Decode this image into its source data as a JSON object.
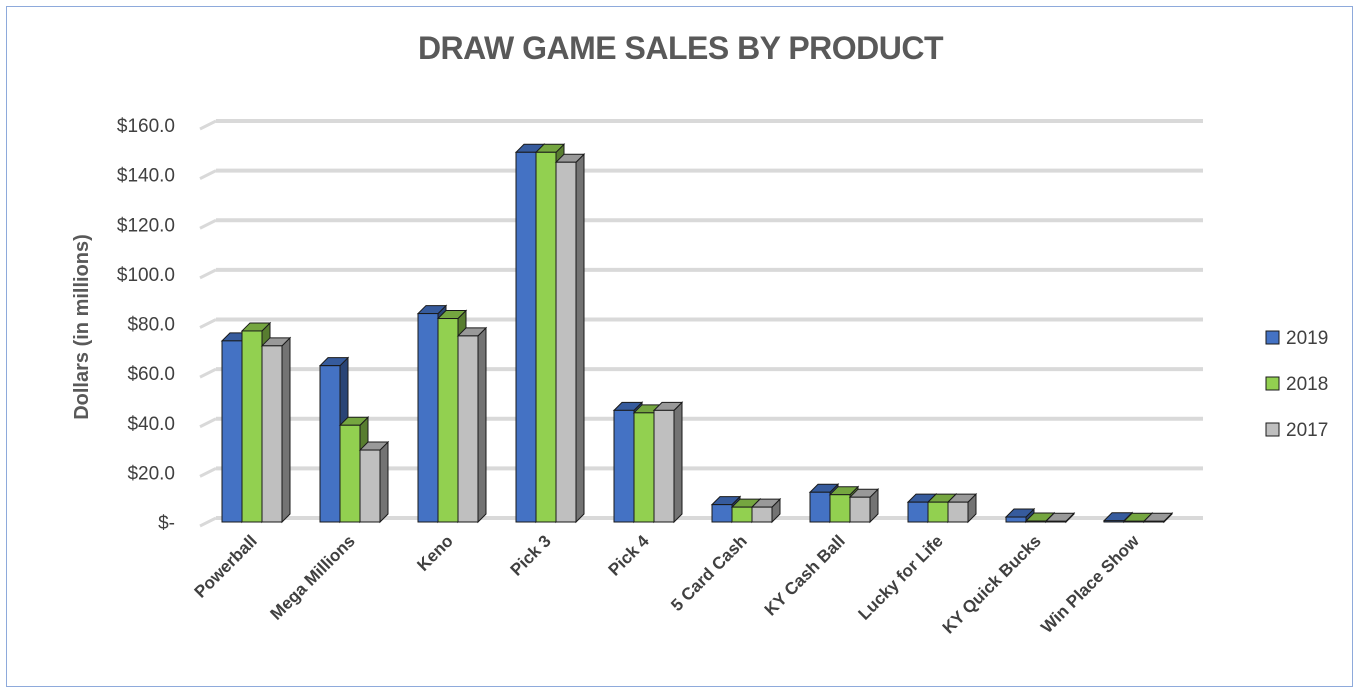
{
  "chart_data": {
    "type": "bar",
    "title": "DRAW GAME SALES BY PRODUCT",
    "ylabel": "Dollars  (in millions)",
    "xlabel": "",
    "ylim": [
      0,
      160
    ],
    "yticks": [
      "$-",
      "$20.0",
      "$40.0",
      "$60.0",
      "$80.0",
      "$100.0",
      "$120.0",
      "$140.0",
      "$160.0"
    ],
    "categories": [
      "Powerball",
      "Mega Millions",
      "Keno",
      "Pick 3",
      "Pick 4",
      "5 Card Cash",
      "KY Cash Ball",
      "Lucky for Life",
      "KY Quick Bucks",
      "Win Place Show"
    ],
    "series": [
      {
        "name": "2019",
        "values": [
          73,
          63,
          84,
          149,
          45,
          7,
          12,
          8,
          2,
          0.5
        ]
      },
      {
        "name": "2018",
        "values": [
          77,
          39,
          82,
          149,
          44,
          6,
          11,
          8,
          0.4,
          0.3
        ]
      },
      {
        "name": "2017",
        "values": [
          71,
          29,
          75,
          145,
          45,
          6,
          10,
          8,
          0.3,
          0.3
        ]
      }
    ],
    "colors": {
      "2019": "#4472c4",
      "2018": "#92d050",
      "2017": "#bfbfbf"
    },
    "grid": true,
    "legend_position": "right",
    "style": "3d-clustered-column"
  }
}
